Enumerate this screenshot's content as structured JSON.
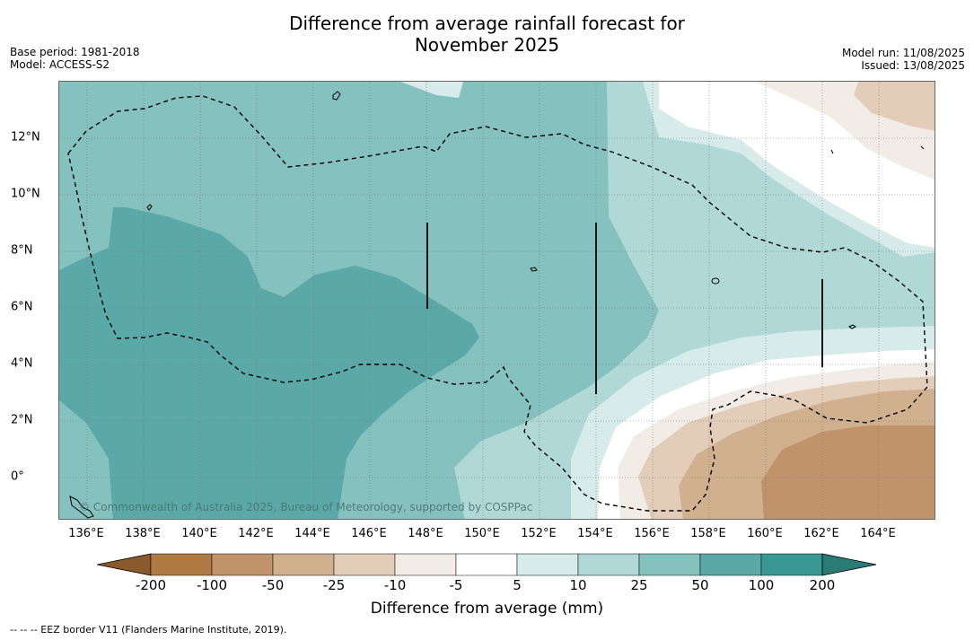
{
  "title": {
    "line1": "Difference from average rainfall forecast for",
    "line2": "November 2025"
  },
  "meta_left": {
    "base_period": "Base period: 1981-2018",
    "model": "Model: ACCESS-S2"
  },
  "meta_right": {
    "model_run": "Model run: 11/08/2025",
    "issued": "Issued: 13/08/2025"
  },
  "map": {
    "x_ticks": [
      "136°E",
      "138°E",
      "140°E",
      "142°E",
      "144°E",
      "146°E",
      "148°E",
      "150°E",
      "152°E",
      "154°E",
      "156°E",
      "158°E",
      "160°E",
      "162°E",
      "164°E"
    ],
    "y_ticks": [
      "12°N",
      "10°N",
      "8°N",
      "6°N",
      "4°N",
      "2°N",
      "0°"
    ],
    "copyright": "© Commonwealth of Australia 2025, Bureau of Meteorology, supported by COSPPac",
    "grid": true,
    "border_style": "dashed"
  },
  "colorbar": {
    "title": "Difference from average (mm)",
    "labels": [
      "-200",
      "-100",
      "-50",
      "-25",
      "-10",
      "-5",
      "5",
      "10",
      "25",
      "50",
      "100",
      "200"
    ],
    "colors": [
      "#8a5a2c",
      "#b07a45",
      "#c0936a",
      "#d1b08f",
      "#e3cdb8",
      "#f2ece6",
      "#ffffff",
      "#d6ebea",
      "#afd8d7",
      "#84c1bf",
      "#5aa9a8",
      "#3a9894",
      "#2a7a76"
    ]
  },
  "footnote": "--  --  -- EEZ border V11 (Flanders Marine Institute, 2019)."
}
